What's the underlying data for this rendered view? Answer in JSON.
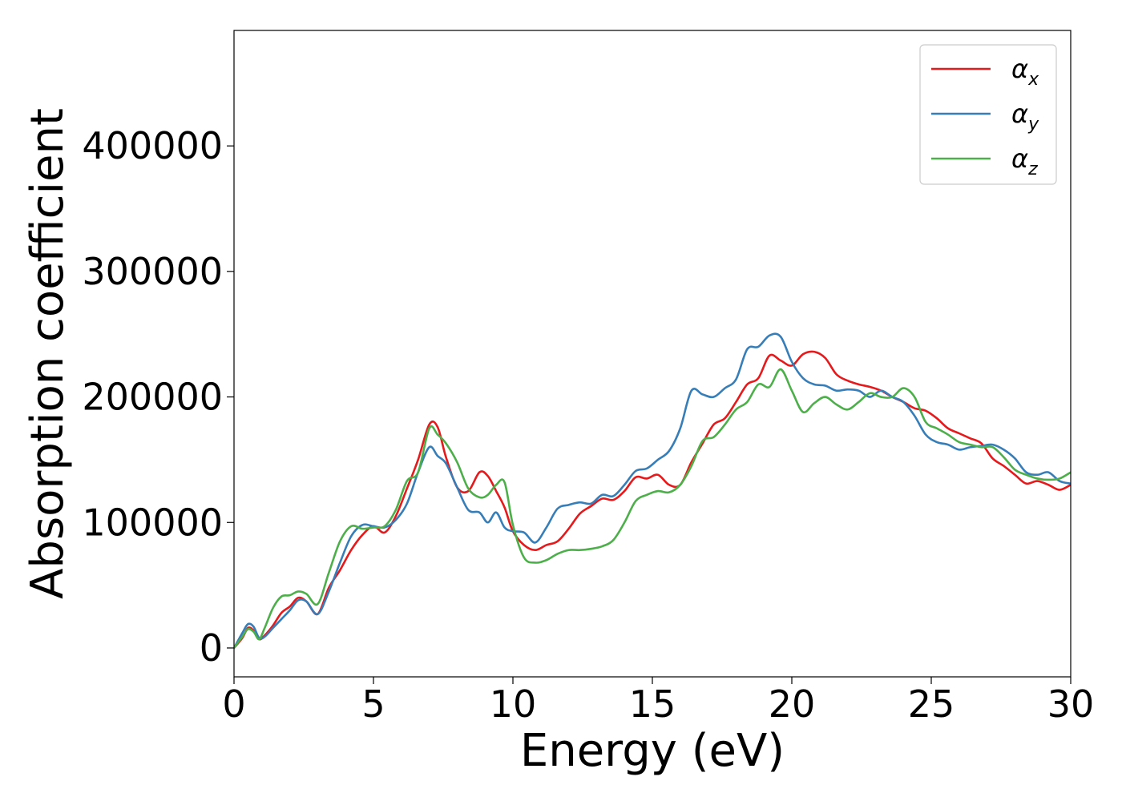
{
  "chart_data": {
    "type": "line",
    "xlabel": "Energy (eV)",
    "ylabel": "Absorption coefficient",
    "xlim": [
      0,
      30
    ],
    "ylim": [
      -23000,
      492000
    ],
    "xticks": [
      "0",
      "5",
      "10",
      "15",
      "20",
      "25",
      "30"
    ],
    "yticks": [
      "0",
      "100000",
      "200000",
      "300000",
      "400000"
    ],
    "grid": false,
    "legend_position": "top-right",
    "series": [
      {
        "name": "α",
        "subscript": "x",
        "color": "#e41a1c",
        "x": [
          0,
          0.3,
          0.5,
          0.7,
          0.9,
          1.1,
          1.4,
          1.7,
          2.0,
          2.3,
          2.6,
          3.0,
          3.4,
          3.8,
          4.2,
          4.6,
          5.0,
          5.4,
          5.8,
          6.2,
          6.6,
          7.0,
          7.3,
          7.6,
          8.0,
          8.4,
          8.8,
          9.1,
          9.4,
          9.7,
          10.0,
          10.4,
          10.8,
          11.2,
          11.6,
          12.0,
          12.4,
          12.8,
          13.2,
          13.6,
          14.0,
          14.4,
          14.8,
          15.2,
          15.6,
          16.0,
          16.4,
          16.8,
          17.2,
          17.6,
          18.0,
          18.4,
          18.8,
          19.2,
          19.6,
          20.0,
          20.4,
          20.8,
          21.2,
          21.6,
          22.0,
          22.4,
          22.8,
          23.2,
          23.6,
          24.0,
          24.4,
          24.8,
          25.2,
          25.6,
          26.0,
          26.4,
          26.8,
          27.2,
          27.6,
          28.0,
          28.4,
          28.8,
          29.2,
          29.6,
          30.0
        ],
        "y": [
          0,
          8000,
          16000,
          14000,
          7000,
          10000,
          18000,
          28000,
          33000,
          40000,
          37000,
          27000,
          48000,
          62000,
          78000,
          90000,
          97000,
          92000,
          105000,
          127000,
          150000,
          178000,
          176000,
          152000,
          128000,
          125000,
          140000,
          137000,
          125000,
          112000,
          93000,
          82000,
          78000,
          82000,
          85000,
          95000,
          107000,
          113000,
          119000,
          118000,
          125000,
          136000,
          135000,
          138000,
          130000,
          130000,
          148000,
          163000,
          178000,
          183000,
          196000,
          210000,
          215000,
          233000,
          229000,
          225000,
          234000,
          236000,
          231000,
          218000,
          213000,
          210000,
          208000,
          205000,
          200000,
          196000,
          191000,
          189000,
          183000,
          175000,
          171000,
          167000,
          163000,
          151000,
          145000,
          138000,
          131000,
          133000,
          130000,
          126000,
          130000
        ]
      },
      {
        "name": "α",
        "subscript": "y",
        "color": "#377eb8",
        "x": [
          0,
          0.3,
          0.5,
          0.7,
          0.9,
          1.1,
          1.4,
          1.7,
          2.0,
          2.3,
          2.6,
          3.0,
          3.4,
          3.8,
          4.2,
          4.6,
          5.0,
          5.4,
          5.8,
          6.2,
          6.6,
          7.0,
          7.3,
          7.6,
          8.0,
          8.4,
          8.8,
          9.1,
          9.4,
          9.7,
          10.0,
          10.4,
          10.8,
          11.2,
          11.6,
          12.0,
          12.4,
          12.8,
          13.2,
          13.6,
          14.0,
          14.4,
          14.8,
          15.2,
          15.6,
          16.0,
          16.4,
          16.8,
          17.2,
          17.6,
          18.0,
          18.4,
          18.8,
          19.2,
          19.6,
          20.0,
          20.4,
          20.8,
          21.2,
          21.6,
          22.0,
          22.4,
          22.8,
          23.2,
          23.6,
          24.0,
          24.4,
          24.8,
          25.2,
          25.6,
          26.0,
          26.4,
          26.8,
          27.2,
          27.6,
          28.0,
          28.4,
          28.8,
          29.2,
          29.6,
          30.0
        ],
        "y": [
          0,
          12000,
          19000,
          17000,
          8000,
          9000,
          16000,
          23000,
          30000,
          38000,
          37000,
          27000,
          45000,
          68000,
          89000,
          98000,
          97000,
          96000,
          102000,
          115000,
          140000,
          160000,
          153000,
          147000,
          128000,
          110000,
          108000,
          100000,
          108000,
          96000,
          93000,
          92000,
          84000,
          96000,
          111000,
          114000,
          116000,
          115000,
          122000,
          121000,
          130000,
          141000,
          143000,
          150000,
          157000,
          175000,
          205000,
          202000,
          200000,
          207000,
          214000,
          238000,
          240000,
          249000,
          248000,
          228000,
          215000,
          210000,
          209000,
          205000,
          206000,
          205000,
          200000,
          205000,
          200000,
          196000,
          185000,
          170000,
          164000,
          162000,
          158000,
          160000,
          161000,
          162000,
          158000,
          151000,
          140000,
          138000,
          140000,
          133000,
          131000
        ]
      },
      {
        "name": "α",
        "subscript": "z",
        "color": "#4daf4a",
        "x": [
          0,
          0.3,
          0.5,
          0.7,
          0.9,
          1.1,
          1.4,
          1.7,
          2.0,
          2.3,
          2.6,
          3.0,
          3.4,
          3.8,
          4.2,
          4.6,
          5.0,
          5.4,
          5.8,
          6.2,
          6.6,
          7.0,
          7.3,
          7.6,
          8.0,
          8.4,
          8.8,
          9.1,
          9.4,
          9.7,
          10.0,
          10.4,
          10.8,
          11.2,
          11.6,
          12.0,
          12.4,
          12.8,
          13.2,
          13.6,
          14.0,
          14.4,
          14.8,
          15.2,
          15.6,
          16.0,
          16.4,
          16.8,
          17.2,
          17.6,
          18.0,
          18.4,
          18.8,
          19.2,
          19.6,
          20.0,
          20.4,
          20.8,
          21.2,
          21.6,
          22.0,
          22.4,
          22.8,
          23.2,
          23.6,
          24.0,
          24.4,
          24.8,
          25.2,
          25.6,
          26.0,
          26.4,
          26.8,
          27.2,
          27.6,
          28.0,
          28.4,
          28.8,
          29.2,
          29.6,
          30.0
        ],
        "y": [
          0,
          9000,
          15000,
          13000,
          7000,
          16000,
          32000,
          41000,
          42000,
          45000,
          43000,
          35000,
          60000,
          85000,
          97000,
          95000,
          96000,
          97000,
          110000,
          133000,
          140000,
          175000,
          170000,
          163000,
          148000,
          127000,
          120000,
          122000,
          130000,
          132000,
          98000,
          72000,
          68000,
          70000,
          75000,
          78000,
          78000,
          79000,
          81000,
          86000,
          100000,
          117000,
          122000,
          125000,
          124000,
          130000,
          145000,
          165000,
          168000,
          178000,
          190000,
          196000,
          210000,
          208000,
          222000,
          205000,
          188000,
          195000,
          200000,
          194000,
          190000,
          196000,
          203000,
          200000,
          200000,
          207000,
          200000,
          180000,
          175000,
          170000,
          164000,
          162000,
          160000,
          160000,
          152000,
          142000,
          138000,
          135000,
          134000,
          135000,
          140000
        ]
      }
    ]
  }
}
